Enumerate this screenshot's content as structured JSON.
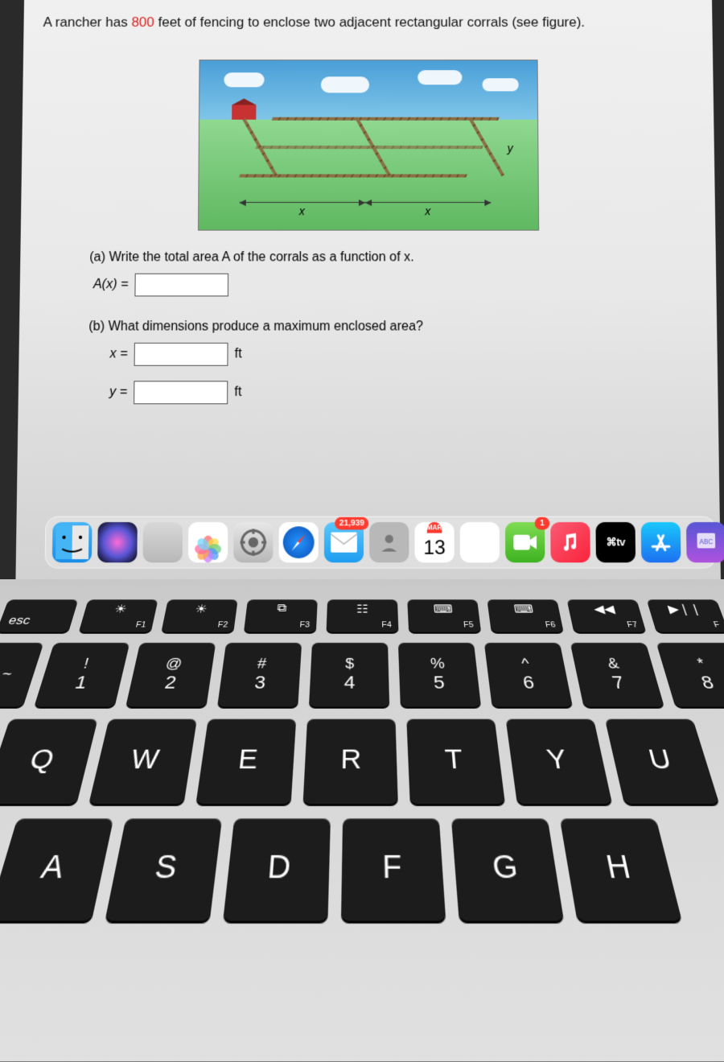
{
  "problem": {
    "prefix": "A rancher has ",
    "highlight": "800",
    "suffix": " feet of fencing to enclose two adjacent rectangular corrals (see figure)."
  },
  "figure": {
    "dim_x": "x",
    "dim_y": "y"
  },
  "parts": {
    "a_text": "(a) Write the total area A of the corrals as a function of x.",
    "a_label": "A(x) =",
    "b_text": "(b) What dimensions produce a maximum enclosed area?",
    "x_label": "x =",
    "y_label": "y =",
    "unit": "ft"
  },
  "dock": {
    "mail_badge": "21,939",
    "cal_month": "MAR",
    "cal_day": "13",
    "facetime_badge": "1",
    "tv_label": "⌘tv"
  },
  "keyboard": {
    "esc": "esc",
    "frow": [
      {
        "sym": "☀",
        "lbl": "F1"
      },
      {
        "sym": "☀",
        "lbl": "F2"
      },
      {
        "sym": "⧉",
        "lbl": "F3"
      },
      {
        "sym": "☷",
        "lbl": "F4"
      },
      {
        "sym": "⌨",
        "lbl": "F5"
      },
      {
        "sym": "⌨",
        "lbl": "F6"
      },
      {
        "sym": "◀◀",
        "lbl": "F7"
      },
      {
        "sym": "▶❘❘",
        "lbl": "F"
      }
    ],
    "nrow": [
      {
        "top": "!",
        "bot": "1",
        "left": "~"
      },
      {
        "top": "@",
        "bot": "2"
      },
      {
        "top": "#",
        "bot": "3"
      },
      {
        "top": "$",
        "bot": "4"
      },
      {
        "top": "%",
        "bot": "5"
      },
      {
        "top": "^",
        "bot": "6"
      },
      {
        "top": "&",
        "bot": "7"
      },
      {
        "top": "*",
        "bot": "8"
      }
    ],
    "tilde": {
      "top": "~"
    },
    "qrow": [
      "Q",
      "W",
      "E",
      "R",
      "T",
      "Y",
      "U"
    ],
    "arow": [
      "A",
      "S",
      "D",
      "F",
      "G",
      "H"
    ]
  },
  "colors": {
    "petals": [
      "#ff6b6b",
      "#ffd93d",
      "#6bcf7f",
      "#4d96ff",
      "#c77dff",
      "#ff9f43",
      "#ff6b9d",
      "#70d6ff"
    ]
  }
}
